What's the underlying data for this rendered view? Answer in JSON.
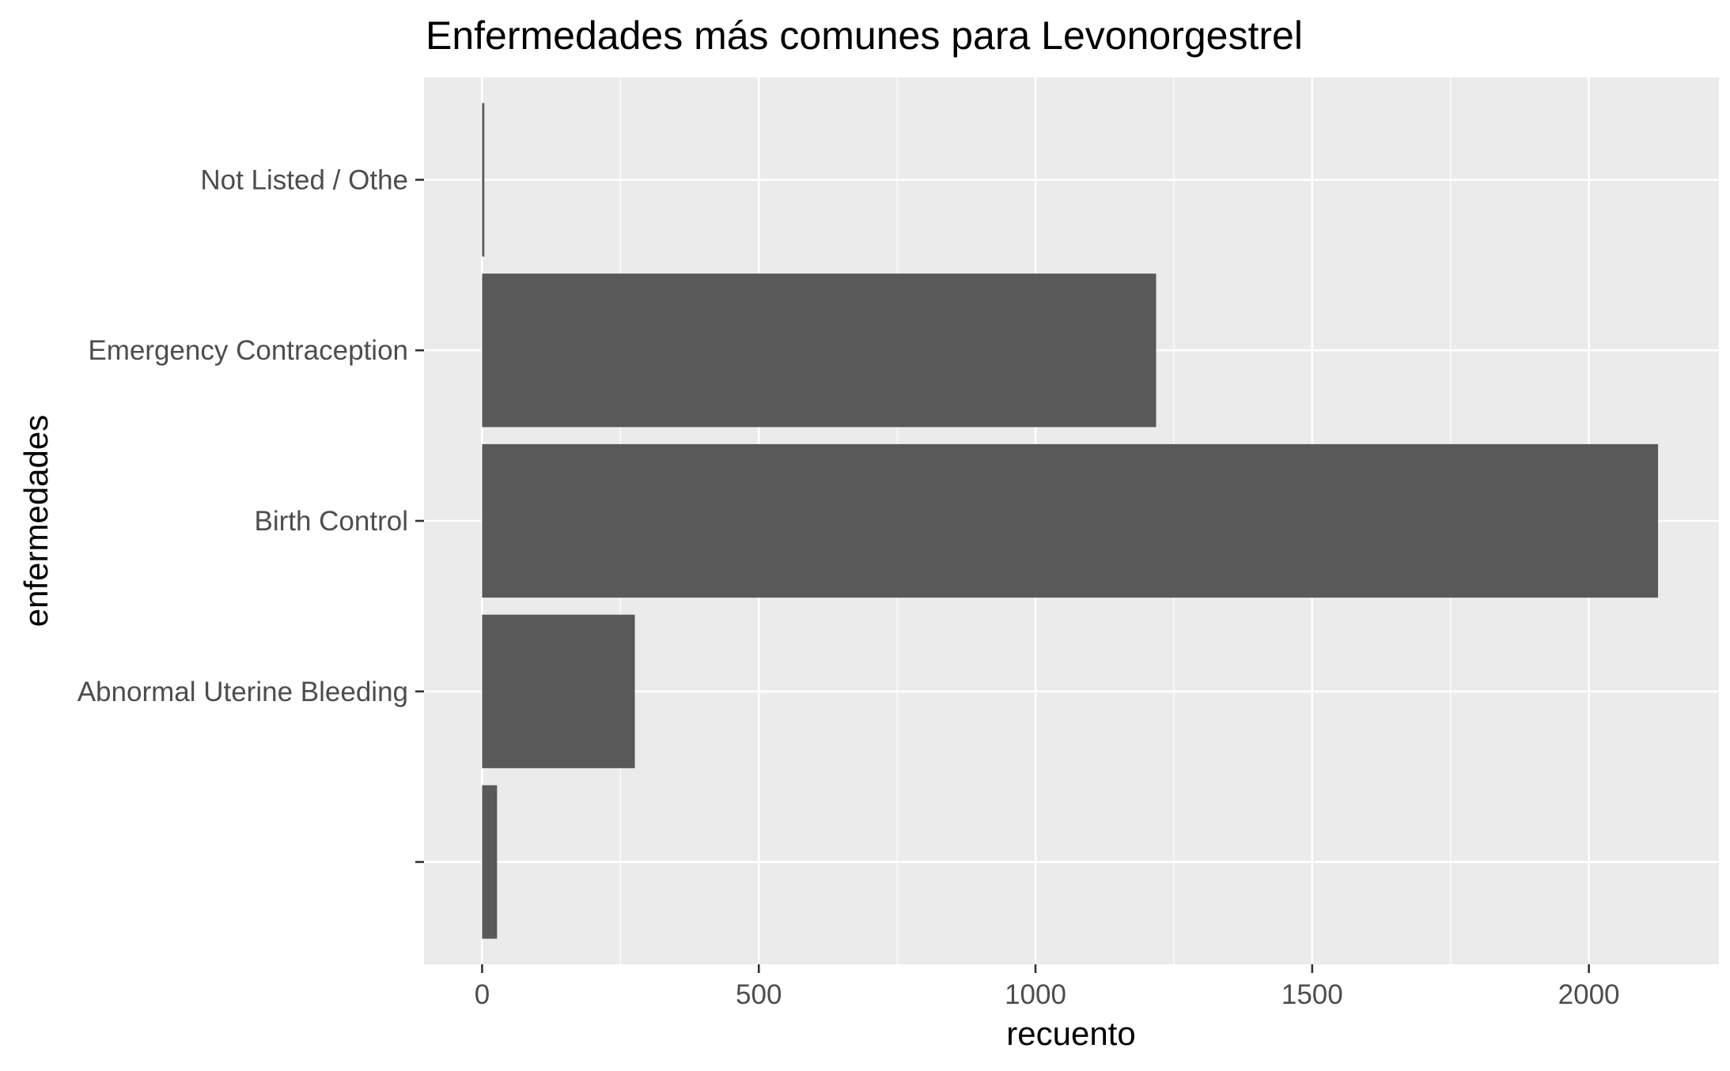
{
  "chart_data": {
    "type": "bar",
    "orientation": "horizontal",
    "title": "Enfermedades más comunes para Levonorgestrel",
    "xlabel": "recuento",
    "ylabel": "enfermedades",
    "categories": [
      "",
      "Abnormal Uterine Bleeding",
      "Birth Control",
      "Emergency Contraception",
      "Not Listed / Othe"
    ],
    "values": [
      27,
      276,
      2125,
      1218,
      4
    ],
    "xlim": [
      -105,
      2235
    ],
    "x_ticks": [
      0,
      500,
      1000,
      1500,
      2000
    ],
    "grid": true,
    "legend": "none",
    "colors": {
      "panel": "#ebebeb",
      "grid": "#ffffff",
      "bar": "#595959",
      "tick_text": "#4d4d4d",
      "tick_mark": "#333333",
      "title_text": "#000000"
    }
  }
}
